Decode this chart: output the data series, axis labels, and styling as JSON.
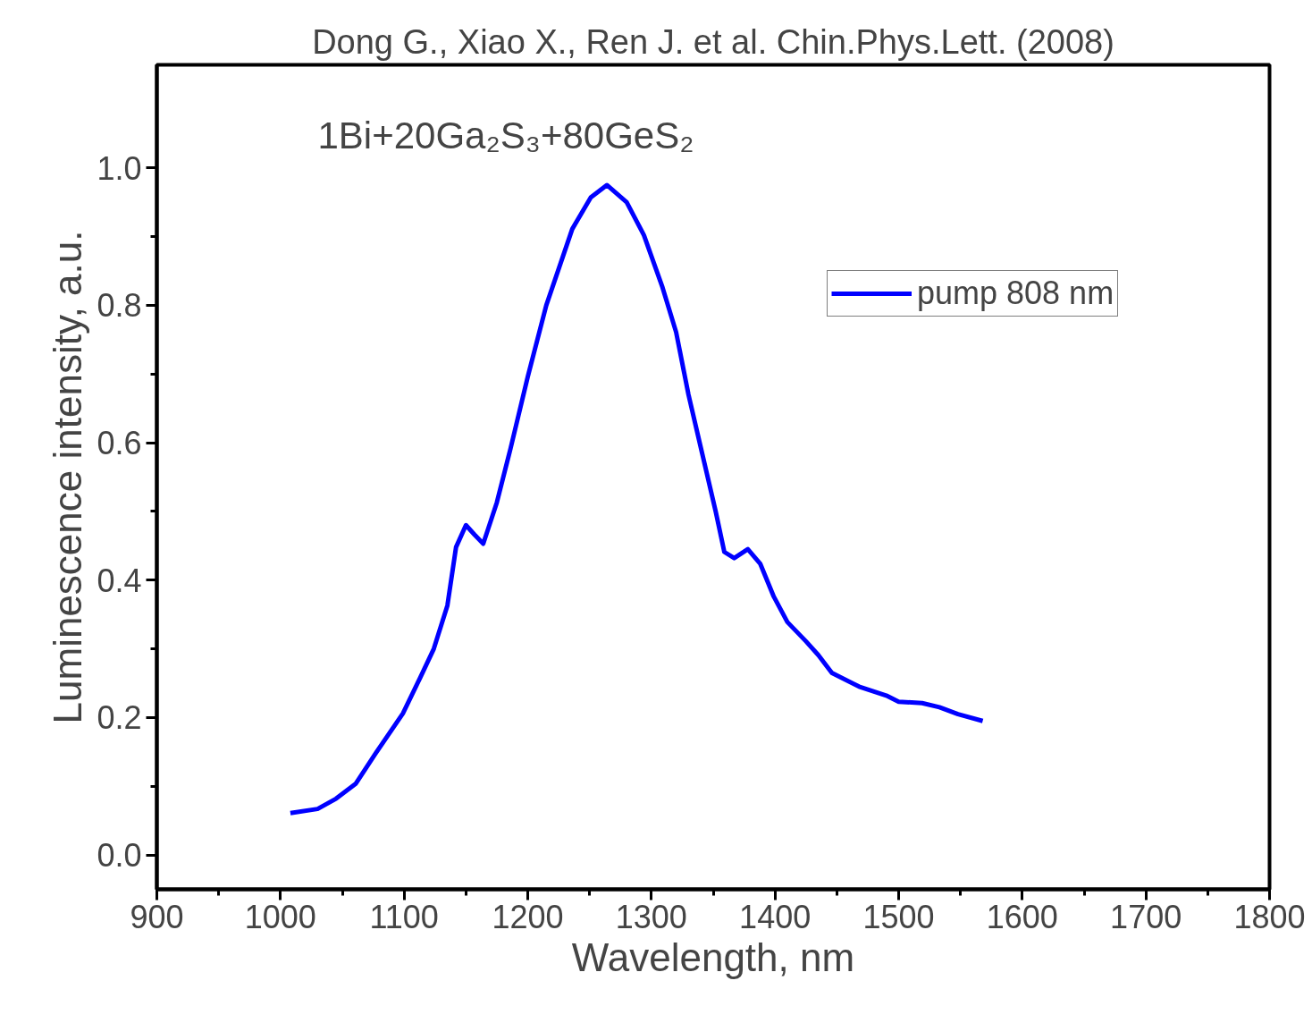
{
  "chart_data": {
    "type": "line",
    "title": "Dong G., Xiao X., Ren J. et al. Chin.Phys.Lett. (2008)",
    "xlabel": "Wavelength, nm",
    "ylabel": "Luminescence intensity, a.u.",
    "annotations": [
      "1Bi+20Ga₂S₃+80GeS₂"
    ],
    "xlim": [
      900,
      1800
    ],
    "xticks": [
      900,
      1000,
      1100,
      1200,
      1300,
      1400,
      1500,
      1600,
      1700,
      1800
    ],
    "ylim": [
      -0.05,
      1.15
    ],
    "yticks": [
      {
        "value": 0,
        "label": "0.0"
      },
      0.2,
      0.4,
      0.6,
      0.8,
      {
        "value": 1,
        "label": "1.0"
      }
    ],
    "grid": false,
    "legend": "top right",
    "marker": "none",
    "line_style": "solid",
    "series": [
      {
        "name": "pump 808 nm",
        "color": "#0000ff",
        "x": [
          1008,
          1030,
          1045,
          1061,
          1077,
          1099,
          1113,
          1124,
          1135,
          1142,
          1150,
          1157,
          1164,
          1175,
          1186,
          1200,
          1215,
          1236,
          1251,
          1264,
          1280,
          1294,
          1309,
          1320,
          1330,
          1341,
          1352,
          1359,
          1367,
          1378,
          1388,
          1399,
          1410,
          1425,
          1435,
          1446,
          1468,
          1490,
          1500,
          1519,
          1533,
          1548,
          1568
        ],
        "values": [
          0.061,
          0.067,
          0.082,
          0.104,
          0.148,
          0.206,
          0.258,
          0.3,
          0.363,
          0.448,
          0.48,
          0.466,
          0.453,
          0.513,
          0.591,
          0.696,
          0.8,
          0.911,
          0.957,
          0.975,
          0.95,
          0.902,
          0.826,
          0.761,
          0.67,
          0.585,
          0.5,
          0.441,
          0.432,
          0.445,
          0.424,
          0.376,
          0.339,
          0.311,
          0.291,
          0.265,
          0.245,
          0.232,
          0.223,
          0.221,
          0.215,
          0.205,
          0.195
        ]
      }
    ]
  }
}
